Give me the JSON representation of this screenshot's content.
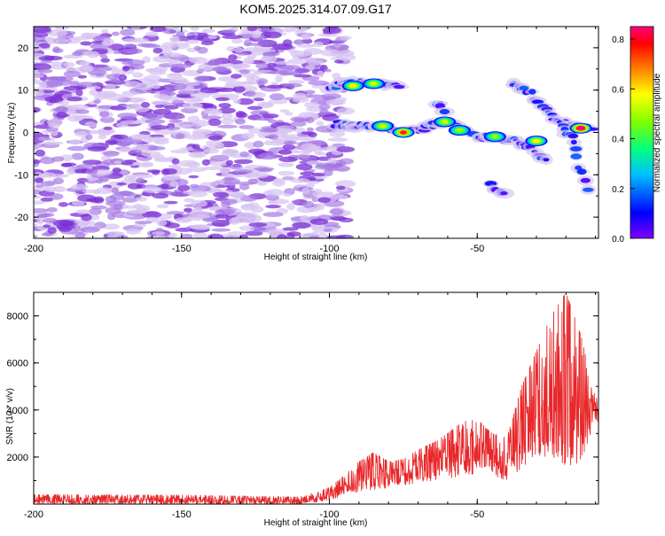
{
  "title": "KOM5.2025.314.07.09.G17",
  "colors": {
    "background": "#ffffff",
    "axis": "#000000",
    "snr_line": "#e8282a",
    "scatter_light": "#d8c6f2",
    "scatter_mid": "#a77be6",
    "scatter_dark": "#7a2fd6"
  },
  "chart_data": [
    {
      "type": "heatmap",
      "title": "KOM5.2025.314.07.09.G17",
      "xlabel": "Height of straight line (km)",
      "ylabel": "Frequency (Hz)",
      "xlim": [
        -200,
        -9
      ],
      "ylim": [
        -25,
        25
      ],
      "x_ticks": [
        -200,
        -150,
        -100,
        -50
      ],
      "y_ticks": [
        -20,
        -10,
        0,
        10,
        20
      ],
      "x_tick_labels": [
        "-200",
        "-150",
        "-100",
        "-50"
      ],
      "y_tick_labels": [
        "-20",
        "-10",
        "0",
        "10",
        "20"
      ],
      "noise_region_x": [
        -200,
        -96
      ],
      "colorbar": {
        "label": "Normalized spectral amplitude",
        "range": [
          0.0,
          0.85
        ],
        "ticks": [
          0.0,
          0.2,
          0.4,
          0.6,
          0.8
        ],
        "tick_labels": [
          "0.0",
          "0.2",
          "0.4",
          "0.6",
          "0.8"
        ],
        "colormap": [
          "#7f00ff",
          "#0000ff",
          "#00c0ff",
          "#00ff80",
          "#80ff00",
          "#ffff00",
          "#ff8000",
          "#ff0000",
          "#ff0080"
        ]
      },
      "features": [
        {
          "name": "upper branch",
          "points": [
            [
              -100,
              10.5
            ],
            [
              -92,
              12
            ],
            [
              -86,
              11.5
            ],
            [
              -80,
              11
            ],
            [
              -76,
              11
            ]
          ]
        },
        {
          "name": "main branch",
          "points": [
            [
              -98,
              2
            ],
            [
              -90,
              1.5
            ],
            [
              -82,
              1.5
            ],
            [
              -76,
              0
            ],
            [
              -70,
              0.5
            ],
            [
              -64,
              2
            ],
            [
              -60,
              3
            ],
            [
              -56,
              1
            ],
            [
              -50,
              -1
            ],
            [
              -44,
              -1
            ],
            [
              -38,
              -2
            ],
            [
              -34,
              -3
            ],
            [
              -30,
              -5
            ],
            [
              -26,
              -7
            ]
          ]
        },
        {
          "name": "upper right fragment",
          "points": [
            [
              -64,
              7
            ],
            [
              -60,
              5
            ]
          ]
        },
        {
          "name": "right cluster",
          "points": [
            [
              -20,
              2
            ],
            [
              -15,
              1
            ],
            [
              -10,
              0.5
            ]
          ]
        },
        {
          "name": "diagonal tail",
          "points": [
            [
              -38,
              12
            ],
            [
              -32,
              9
            ],
            [
              -28,
              6
            ],
            [
              -24,
              3
            ],
            [
              -18,
              -1
            ],
            [
              -16,
              -8
            ],
            [
              -12,
              -15
            ]
          ]
        },
        {
          "name": "lower tail",
          "points": [
            [
              -46,
              -12
            ],
            [
              -40,
              -15
            ]
          ]
        }
      ],
      "hotspots": [
        {
          "x": -92,
          "y": 11,
          "value": 0.5
        },
        {
          "x": -85,
          "y": 11.5,
          "value": 0.45
        },
        {
          "x": -82,
          "y": 1.5,
          "value": 0.45
        },
        {
          "x": -75,
          "y": 0,
          "value": 0.7
        },
        {
          "x": -61,
          "y": 2.5,
          "value": 0.45
        },
        {
          "x": -56,
          "y": 0.5,
          "value": 0.4
        },
        {
          "x": -44,
          "y": -1,
          "value": 0.4
        },
        {
          "x": -30,
          "y": -2,
          "value": 0.5
        },
        {
          "x": -15,
          "y": 1,
          "value": 0.85
        }
      ]
    },
    {
      "type": "line",
      "xlabel": "Height of straight line (km)",
      "ylabel": "SNR (10 * v/v)",
      "xlim": [
        -200,
        -9
      ],
      "ylim": [
        0,
        9000
      ],
      "x_ticks": [
        -200,
        -150,
        -100,
        -50
      ],
      "y_ticks": [
        2000,
        4000,
        6000,
        8000
      ],
      "x_tick_labels": [
        "-200",
        "-150",
        "-100",
        "-50"
      ],
      "y_tick_labels": [
        "2000",
        "4000",
        "6000",
        "8000"
      ],
      "series": [
        {
          "name": "SNR",
          "envelope_x": [
            -200,
            -150,
            -110,
            -100,
            -95,
            -90,
            -85,
            -80,
            -75,
            -70,
            -65,
            -60,
            -55,
            -50,
            -45,
            -40,
            -35,
            -30,
            -25,
            -20,
            -15,
            -10
          ],
          "envelope_low": [
            0,
            0,
            0,
            150,
            400,
            500,
            600,
            700,
            800,
            900,
            1000,
            1100,
            1200,
            1300,
            1200,
            1000,
            1500,
            2000,
            2000,
            1500,
            1800,
            3500
          ],
          "envelope_high": [
            400,
            380,
            300,
            700,
            1200,
            1800,
            2200,
            1800,
            1900,
            2300,
            2600,
            3000,
            3500,
            3600,
            3000,
            2800,
            5000,
            6500,
            8000,
            9000,
            7200,
            4500
          ]
        }
      ]
    }
  ]
}
